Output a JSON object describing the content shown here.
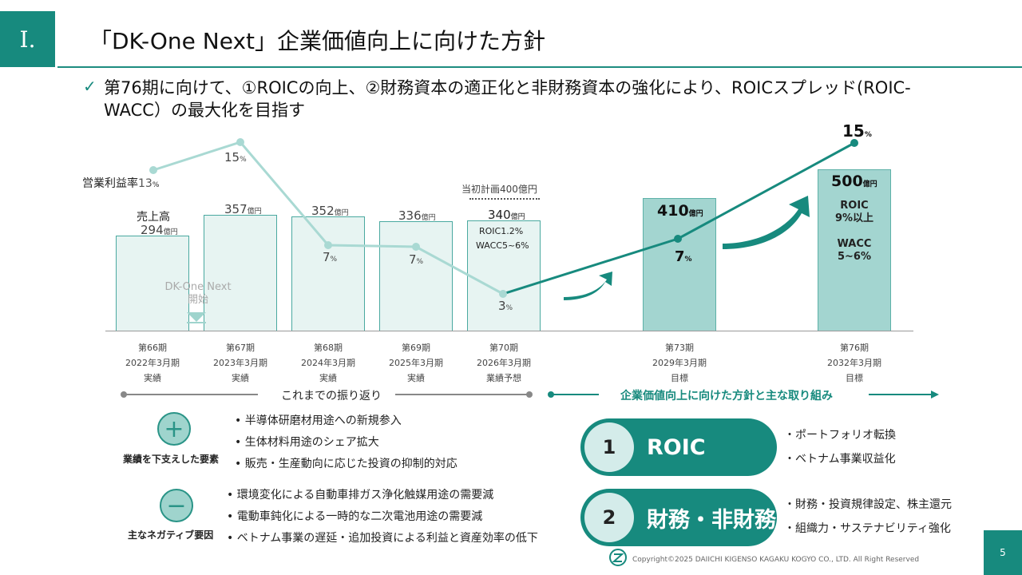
{
  "header": {
    "section": "Ⅰ.",
    "title": "「DK-One Next」企業価値向上に向けた方針",
    "bullet": "第76期に向けて、①ROICの向上、②財務資本の適正化と非財務資本の強化により、ROICスプレッド(ROIC-WACC）の最大化を目指す"
  },
  "chart_data": {
    "type": "bar",
    "categories": [
      "第66期",
      "第67期",
      "第68期",
      "第69期",
      "第70期",
      "第73期",
      "第76期"
    ],
    "series": [
      {
        "name": "売上高",
        "values": [
          294,
          357,
          352,
          336,
          340,
          410,
          500
        ]
      },
      {
        "name": "営業利益率",
        "values": [
          13,
          15,
          7,
          7,
          3,
          7,
          15
        ]
      }
    ],
    "unit_sales": "億円",
    "unit_margin": "%",
    "periods": [
      {
        "name": "第66期",
        "date": "2022年3月期",
        "status": "実績",
        "sales": "294",
        "margin": "13"
      },
      {
        "name": "第67期",
        "date": "2023年3月期",
        "status": "実績",
        "sales": "357",
        "margin": "15"
      },
      {
        "name": "第68期",
        "date": "2024年3月期",
        "status": "実績",
        "sales": "352",
        "margin": "7"
      },
      {
        "name": "第69期",
        "date": "2025年3月期",
        "status": "実績",
        "sales": "336",
        "margin": "7"
      },
      {
        "name": "第70期",
        "date": "2026年3月期",
        "status": "業績予想",
        "sales": "340",
        "margin": "3"
      },
      {
        "name": "第73期",
        "date": "2029年3月期",
        "status": "目標",
        "sales": "410",
        "margin": "7"
      },
      {
        "name": "第76期",
        "date": "2032年3月期",
        "status": "目標",
        "sales": "500",
        "margin": "15"
      }
    ],
    "labels": {
      "sales_label": "売上高",
      "margin_label": "営業利益率",
      "original_plan": "当初計画400億円",
      "dk_start": "DK-One Next\n開始",
      "p70_roic": "ROIC1.2%",
      "p70_wacc": "WACC5~6%",
      "p76_roic": "ROIC\n9%以上",
      "p76_wacc": "WACC\n5~6%"
    }
  },
  "timeline": {
    "past": "これまでの振り返り",
    "future": "企業価値向上に向けた方針と主な取り組み"
  },
  "factors": {
    "positive_label": "業績を下支えした要素",
    "positive_items": [
      "半導体研磨材用途への新規参入",
      "生体材料用途のシェア拡大",
      "販売・生産動向に応じた投資の抑制的対応"
    ],
    "negative_label": "主なネガティブ要因",
    "negative_items": [
      "環境変化による自動車排ガス浄化触媒用途の需要減",
      "電動車鈍化による一時的な二次電池用途の需要減",
      "ベトナム事業の遅延・追加投資による利益と資産効率の低下"
    ]
  },
  "initiatives": [
    {
      "num": "1",
      "title": "ROIC",
      "items": [
        "・ポートフォリオ転換",
        "・ベトナム事業収益化"
      ]
    },
    {
      "num": "2",
      "title": "財務・非財務",
      "items": [
        "・財務・投資規律設定、株主還元",
        "・組織力・サステナビリティ強化"
      ]
    }
  ],
  "footer": {
    "copyright": "Copyright©2025 DAIICHI KIGENSO KAGAKU KOGYO CO., LTD. All Right Reserved",
    "page": "5"
  },
  "colors": {
    "accent": "#178a7e",
    "light": "#e7f4f2",
    "mid": "#a3d5d0",
    "line_past": "#a9d9d3"
  }
}
